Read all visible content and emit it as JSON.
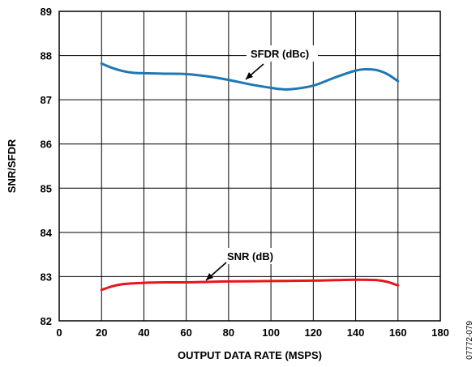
{
  "chart_data": {
    "type": "line",
    "xlabel": "OUTPUT DATA RATE (MSPS)",
    "ylabel": "SNR/SFDR",
    "xlim": [
      0,
      180
    ],
    "ylim": [
      82,
      89
    ],
    "xticks": [
      0,
      20,
      40,
      60,
      80,
      100,
      120,
      140,
      160,
      180
    ],
    "yticks": [
      82,
      83,
      84,
      85,
      86,
      87,
      88,
      89
    ],
    "grid": true,
    "series": [
      {
        "name": "SFDR (dBc)",
        "color": "#1f77b4",
        "x": [
          20,
          25,
          30,
          35,
          40,
          50,
          60,
          70,
          80,
          90,
          100,
          105,
          110,
          120,
          130,
          140,
          145,
          150,
          155,
          160
        ],
        "values": [
          87.82,
          87.72,
          87.65,
          87.61,
          87.6,
          87.59,
          87.58,
          87.53,
          87.45,
          87.35,
          87.27,
          87.24,
          87.24,
          87.32,
          87.5,
          87.66,
          87.69,
          87.67,
          87.58,
          87.42
        ]
      },
      {
        "name": "SNR (dB)",
        "color": "#e8141e",
        "x": [
          20,
          25,
          30,
          40,
          50,
          60,
          70,
          80,
          100,
          120,
          130,
          140,
          150,
          155,
          160
        ],
        "values": [
          82.7,
          82.78,
          82.83,
          82.86,
          82.87,
          82.87,
          82.88,
          82.89,
          82.9,
          82.91,
          82.92,
          82.93,
          82.92,
          82.88,
          82.8
        ]
      }
    ],
    "annotations": [
      {
        "text": "SFDR (dBc)",
        "series": 0
      },
      {
        "text": "SNR (dB)",
        "series": 1
      }
    ]
  },
  "figure_id": "07772-079"
}
